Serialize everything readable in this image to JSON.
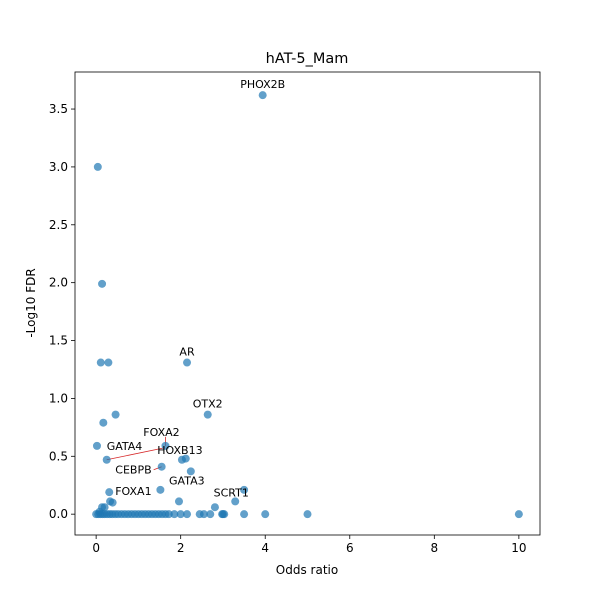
{
  "chart_data": {
    "type": "scatter",
    "title": "hAT-5_Mam",
    "xlabel": "Odds ratio",
    "ylabel": "-Log10 FDR",
    "xlim": [
      -0.5,
      10.5
    ],
    "ylim": [
      -0.18,
      3.82
    ],
    "xticks": [
      0,
      2,
      4,
      6,
      8,
      10
    ],
    "yticks": [
      0.0,
      0.5,
      1.0,
      1.5,
      2.0,
      2.5,
      3.0,
      3.5
    ],
    "grid": false,
    "marker_color": "#1f77b4",
    "marker_alpha": 0.7,
    "annotation_line_color": "#d62728",
    "points": [
      {
        "x": 3.94,
        "y": 3.62,
        "label": "PHOX2B"
      },
      {
        "x": 0.04,
        "y": 3.0
      },
      {
        "x": 0.14,
        "y": 1.99
      },
      {
        "x": 0.11,
        "y": 1.31
      },
      {
        "x": 0.29,
        "y": 1.31
      },
      {
        "x": 2.15,
        "y": 1.31,
        "label": "AR"
      },
      {
        "x": 2.64,
        "y": 0.86,
        "label": "OTX2"
      },
      {
        "x": 0.46,
        "y": 0.86
      },
      {
        "x": 0.17,
        "y": 0.79
      },
      {
        "x": 1.64,
        "y": 0.59,
        "label": "FOXA2"
      },
      {
        "x": 0.02,
        "y": 0.59
      },
      {
        "x": 0.25,
        "y": 0.47,
        "label": "GATA4"
      },
      {
        "x": 2.12,
        "y": 0.48
      },
      {
        "x": 2.03,
        "y": 0.47,
        "label": "HOXB13"
      },
      {
        "x": 1.55,
        "y": 0.41,
        "label": "CEBPB"
      },
      {
        "x": 2.24,
        "y": 0.37,
        "label": "GATA3"
      },
      {
        "x": 3.5,
        "y": 0.21
      },
      {
        "x": 1.52,
        "y": 0.21
      },
      {
        "x": 0.31,
        "y": 0.19,
        "label": "FOXA1"
      },
      {
        "x": 0.33,
        "y": 0.11
      },
      {
        "x": 3.29,
        "y": 0.11,
        "label": "SCRT1"
      },
      {
        "x": 1.96,
        "y": 0.11
      },
      {
        "x": 0.39,
        "y": 0.1
      },
      {
        "x": 2.81,
        "y": 0.06
      },
      {
        "x": 0.14,
        "y": 0.06
      },
      {
        "x": 0.2,
        "y": 0.06
      },
      {
        "x": 0.08,
        "y": 0.02
      },
      {
        "x": 0.0,
        "y": 0.0
      },
      {
        "x": 0.05,
        "y": 0.0
      },
      {
        "x": 0.1,
        "y": 0.0
      },
      {
        "x": 0.15,
        "y": 0.0
      },
      {
        "x": 0.2,
        "y": 0.0
      },
      {
        "x": 0.26,
        "y": 0.0
      },
      {
        "x": 0.32,
        "y": 0.0
      },
      {
        "x": 0.38,
        "y": 0.0
      },
      {
        "x": 0.45,
        "y": 0.0
      },
      {
        "x": 0.52,
        "y": 0.0
      },
      {
        "x": 0.6,
        "y": 0.0
      },
      {
        "x": 0.68,
        "y": 0.0
      },
      {
        "x": 0.76,
        "y": 0.0
      },
      {
        "x": 0.84,
        "y": 0.0
      },
      {
        "x": 0.92,
        "y": 0.0
      },
      {
        "x": 1.0,
        "y": 0.0
      },
      {
        "x": 1.08,
        "y": 0.0
      },
      {
        "x": 1.16,
        "y": 0.0
      },
      {
        "x": 1.24,
        "y": 0.0
      },
      {
        "x": 1.32,
        "y": 0.0
      },
      {
        "x": 1.4,
        "y": 0.0
      },
      {
        "x": 1.48,
        "y": 0.0
      },
      {
        "x": 1.56,
        "y": 0.0
      },
      {
        "x": 1.64,
        "y": 0.0
      },
      {
        "x": 1.72,
        "y": 0.0
      },
      {
        "x": 1.85,
        "y": 0.0
      },
      {
        "x": 2.0,
        "y": 0.0
      },
      {
        "x": 2.15,
        "y": 0.0
      },
      {
        "x": 2.45,
        "y": 0.0
      },
      {
        "x": 2.55,
        "y": 0.0
      },
      {
        "x": 2.7,
        "y": 0.0
      },
      {
        "x": 2.98,
        "y": 0.0
      },
      {
        "x": 3.0,
        "y": 0.0
      },
      {
        "x": 3.03,
        "y": 0.0
      },
      {
        "x": 3.5,
        "y": 0.0
      },
      {
        "x": 4.0,
        "y": 0.0
      },
      {
        "x": 5.0,
        "y": 0.0
      },
      {
        "x": 10.0,
        "y": 0.0
      }
    ]
  }
}
